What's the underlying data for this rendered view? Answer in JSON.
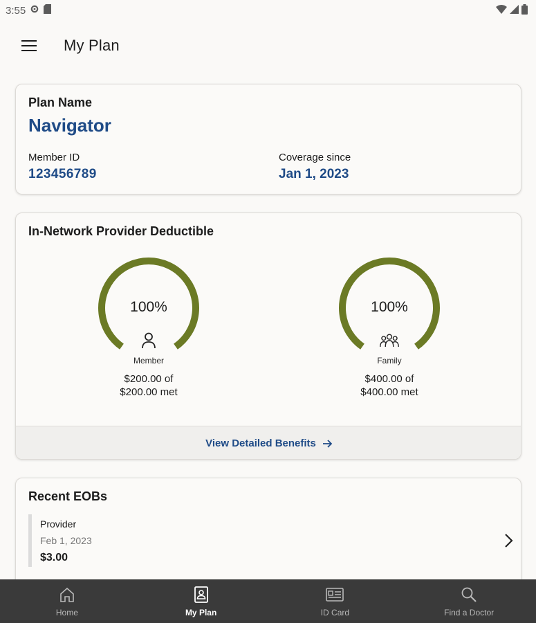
{
  "status_bar": {
    "time": "3:55"
  },
  "header": {
    "title": "My Plan"
  },
  "plan": {
    "label": "Plan Name",
    "name": "Navigator",
    "member_id_label": "Member ID",
    "member_id": "123456789",
    "coverage_label": "Coverage since",
    "coverage_since": "Jan 1, 2023"
  },
  "deductible": {
    "title": "In-Network Provider Deductible",
    "gauges": [
      {
        "percent_label": "100%",
        "fraction": 1.0,
        "caption": "Member",
        "amount_line1": "$200.00 of",
        "amount_line2": "$200.00 met",
        "icon": "person-icon"
      },
      {
        "percent_label": "100%",
        "fraction": 1.0,
        "caption": "Family",
        "amount_line1": "$400.00 of",
        "amount_line2": "$400.00 met",
        "icon": "family-icon"
      }
    ],
    "footer_link": "View Detailed Benefits",
    "accent_color": "#6b7a25"
  },
  "eobs": {
    "title": "Recent EOBs",
    "items": [
      {
        "provider": "Provider",
        "date": "Feb 1, 2023",
        "amount": "$3.00"
      }
    ]
  },
  "nav": {
    "items": [
      {
        "label": "Home",
        "icon": "home-icon",
        "active": false
      },
      {
        "label": "My Plan",
        "icon": "plan-icon",
        "active": true
      },
      {
        "label": "ID Card",
        "icon": "id-card-icon",
        "active": false
      },
      {
        "label": "Find a Doctor",
        "icon": "search-icon",
        "active": false
      }
    ]
  },
  "colors": {
    "brand_blue": "#1f4b87",
    "gauge_green": "#6b7a25",
    "nav_bg": "#3a3a3a"
  }
}
